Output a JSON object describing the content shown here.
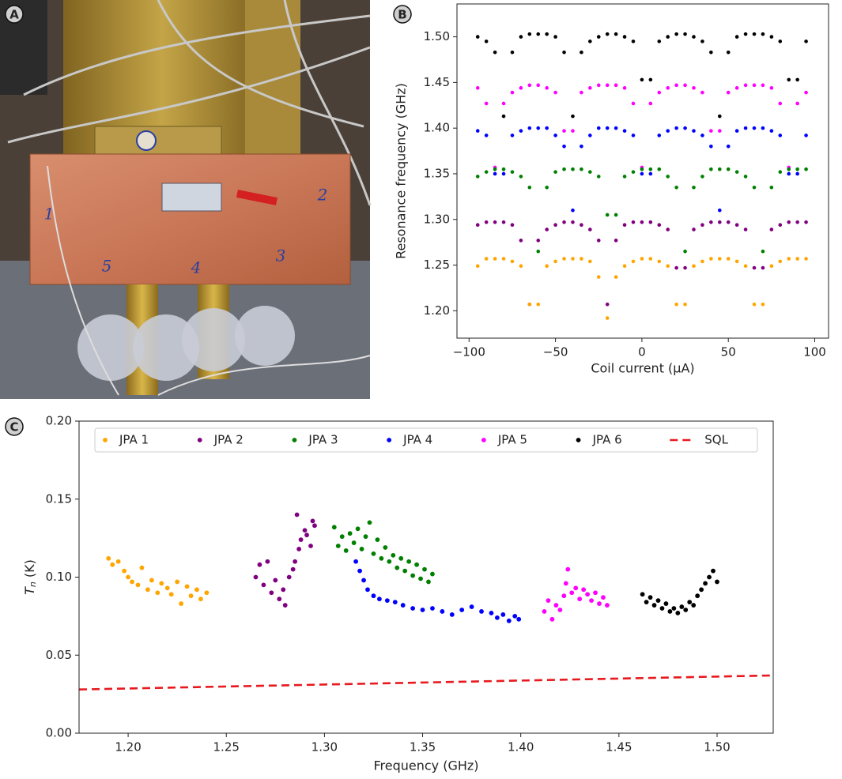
{
  "panel_labels": [
    "A",
    "B",
    "C"
  ],
  "photo_labels": [
    "1",
    "2",
    "3",
    "4",
    "5"
  ],
  "chart_data": [
    {
      "type": "scatter",
      "xlabel": "Coil current (μA)",
      "ylabel": "Resonance frequency (GHz)",
      "xlim": [
        -107,
        108
      ],
      "ylim": [
        1.17,
        1.536
      ],
      "xticks": [
        {
          "value": -100,
          "label": "−100"
        },
        {
          "value": -50,
          "label": "−50"
        },
        0,
        50,
        100
      ],
      "yticks": [
        {
          "value": 1.2,
          "label": "1.20"
        },
        {
          "value": 1.25,
          "label": "1.25"
        },
        {
          "value": 1.3,
          "label": "1.30"
        },
        {
          "value": 1.35,
          "label": "1.35"
        },
        {
          "value": 1.4,
          "label": "1.40"
        },
        {
          "value": 1.45,
          "label": "1.45"
        },
        {
          "value": 1.5,
          "label": "1.50"
        }
      ],
      "x": [
        -95,
        -90,
        -85,
        -80,
        -75,
        -70,
        -65,
        -60,
        -55,
        -50,
        -45,
        -40,
        -35,
        -30,
        -25,
        -20,
        -15,
        -10,
        -5,
        0,
        5,
        10,
        15,
        20,
        25,
        30,
        35,
        40,
        45,
        50,
        55,
        60,
        65,
        70,
        75,
        80,
        85,
        90,
        95
      ],
      "series": [
        {
          "color": "#000000",
          "values": [
            1.5,
            1.495,
            1.483,
            1.413,
            1.483,
            1.5,
            1.503,
            1.503,
            1.503,
            1.5,
            1.483,
            1.413,
            1.483,
            1.495,
            1.5,
            1.503,
            1.503,
            1.5,
            1.495,
            1.453,
            1.453,
            1.495,
            1.5,
            1.503,
            1.503,
            1.5,
            1.495,
            1.483,
            1.413,
            1.483,
            1.5,
            1.503,
            1.503,
            1.503,
            1.5,
            1.495,
            1.453,
            1.453,
            1.495
          ]
        },
        {
          "color": "#ff00ff",
          "values": [
            1.444,
            1.427,
            1.357,
            1.427,
            1.439,
            1.444,
            1.447,
            1.447,
            1.444,
            1.439,
            1.397,
            1.397,
            1.439,
            1.444,
            1.447,
            1.447,
            1.447,
            1.444,
            1.427,
            1.357,
            1.427,
            1.439,
            1.444,
            1.447,
            1.447,
            1.444,
            1.439,
            1.397,
            1.397,
            1.439,
            1.444,
            1.447,
            1.447,
            1.447,
            1.444,
            1.427,
            1.357,
            1.427,
            1.439
          ]
        },
        {
          "color": "#0000ff",
          "values": [
            1.397,
            1.392,
            1.35,
            1.35,
            1.392,
            1.397,
            1.4,
            1.4,
            1.4,
            1.392,
            1.38,
            1.31,
            1.38,
            1.392,
            1.4,
            1.4,
            1.4,
            1.397,
            1.392,
            1.35,
            1.35,
            1.392,
            1.397,
            1.4,
            1.4,
            1.397,
            1.392,
            1.38,
            1.31,
            1.38,
            1.397,
            1.4,
            1.4,
            1.4,
            1.397,
            1.392,
            1.35,
            1.35,
            1.392
          ]
        },
        {
          "color": "#008000",
          "values": [
            1.347,
            1.352,
            1.355,
            1.355,
            1.352,
            1.347,
            1.335,
            1.265,
            1.335,
            1.352,
            1.355,
            1.355,
            1.355,
            1.352,
            1.347,
            1.305,
            1.305,
            1.347,
            1.352,
            1.355,
            1.355,
            1.355,
            1.347,
            1.335,
            1.265,
            1.335,
            1.347,
            1.355,
            1.355,
            1.355,
            1.352,
            1.347,
            1.335,
            1.265,
            1.335,
            1.352,
            1.355,
            1.355,
            1.355
          ]
        },
        {
          "color": "#800080",
          "values": [
            1.294,
            1.297,
            1.297,
            1.297,
            1.294,
            1.277,
            1.207,
            1.277,
            1.289,
            1.294,
            1.297,
            1.297,
            1.294,
            1.289,
            1.277,
            1.207,
            1.277,
            1.294,
            1.297,
            1.297,
            1.297,
            1.294,
            1.289,
            1.247,
            1.247,
            1.289,
            1.294,
            1.297,
            1.297,
            1.297,
            1.294,
            1.289,
            1.247,
            1.247,
            1.289,
            1.294,
            1.297,
            1.297,
            1.297
          ]
        },
        {
          "color": "#ffa500",
          "values": [
            1.249,
            1.257,
            1.257,
            1.257,
            1.254,
            1.249,
            1.207,
            1.207,
            1.249,
            1.254,
            1.257,
            1.257,
            1.257,
            1.254,
            1.237,
            1.192,
            1.237,
            1.249,
            1.254,
            1.257,
            1.257,
            1.254,
            1.249,
            1.207,
            1.207,
            1.249,
            1.254,
            1.257,
            1.257,
            1.257,
            1.254,
            1.249,
            1.207,
            1.207,
            1.249,
            1.254,
            1.257,
            1.257,
            1.257
          ]
        }
      ]
    },
    {
      "type": "scatter",
      "xlabel": "Frequency (GHz)",
      "ylabel": {
        "symbol": "T",
        "subscript": "n",
        "unit": " (K)"
      },
      "xlim": [
        1.175,
        1.5286
      ],
      "ylim": [
        0,
        0.2
      ],
      "xticks": [
        {
          "value": 1.2,
          "label": "1.20"
        },
        {
          "value": 1.25,
          "label": "1.25"
        },
        {
          "value": 1.3,
          "label": "1.30"
        },
        {
          "value": 1.35,
          "label": "1.35"
        },
        {
          "value": 1.4,
          "label": "1.40"
        },
        {
          "value": 1.45,
          "label": "1.45"
        },
        {
          "value": 1.5,
          "label": "1.50"
        }
      ],
      "yticks": [
        {
          "value": 0,
          "label": "0.00"
        },
        {
          "value": 0.05,
          "label": "0.05"
        },
        {
          "value": 0.1,
          "label": "0.10"
        },
        {
          "value": 0.15,
          "label": "0.15"
        },
        {
          "value": 0.2,
          "label": "0.20"
        }
      ],
      "legend": "upper center",
      "series": [
        {
          "name": "JPA 1",
          "color": "#ffa500",
          "x": [
            1.19,
            1.192,
            1.195,
            1.198,
            1.2,
            1.202,
            1.205,
            1.207,
            1.21,
            1.212,
            1.215,
            1.217,
            1.22,
            1.222,
            1.225,
            1.227,
            1.23,
            1.232,
            1.235,
            1.237,
            1.24
          ],
          "values": [
            0.112,
            0.108,
            0.11,
            0.104,
            0.1,
            0.097,
            0.095,
            0.106,
            0.092,
            0.098,
            0.09,
            0.096,
            0.093,
            0.089,
            0.097,
            0.083,
            0.094,
            0.088,
            0.092,
            0.086,
            0.09
          ]
        },
        {
          "name": "JPA 2",
          "color": "#800080",
          "x": [
            1.265,
            1.267,
            1.269,
            1.271,
            1.273,
            1.275,
            1.277,
            1.279,
            1.28,
            1.282,
            1.284,
            1.285,
            1.287,
            1.288,
            1.29,
            1.291,
            1.293,
            1.294,
            1.295,
            1.286
          ],
          "values": [
            0.1,
            0.108,
            0.095,
            0.11,
            0.09,
            0.098,
            0.086,
            0.092,
            0.082,
            0.1,
            0.105,
            0.11,
            0.118,
            0.124,
            0.13,
            0.127,
            0.12,
            0.136,
            0.133,
            0.14
          ]
        },
        {
          "name": "JPA 3",
          "color": "#008000",
          "x": [
            1.305,
            1.307,
            1.309,
            1.311,
            1.313,
            1.315,
            1.317,
            1.319,
            1.321,
            1.323,
            1.325,
            1.327,
            1.329,
            1.331,
            1.333,
            1.335,
            1.337,
            1.339,
            1.341,
            1.343,
            1.345,
            1.347,
            1.349,
            1.351,
            1.353,
            1.355
          ],
          "values": [
            0.132,
            0.12,
            0.126,
            0.117,
            0.128,
            0.122,
            0.131,
            0.118,
            0.126,
            0.135,
            0.115,
            0.124,
            0.112,
            0.119,
            0.11,
            0.114,
            0.106,
            0.112,
            0.104,
            0.11,
            0.101,
            0.108,
            0.099,
            0.105,
            0.097,
            0.102
          ]
        },
        {
          "name": "JPA 4",
          "color": "#0000ff",
          "x": [
            1.316,
            1.318,
            1.32,
            1.322,
            1.325,
            1.328,
            1.332,
            1.336,
            1.34,
            1.345,
            1.35,
            1.355,
            1.36,
            1.365,
            1.37,
            1.375,
            1.38,
            1.385,
            1.388,
            1.391,
            1.394,
            1.397,
            1.399
          ],
          "values": [
            0.11,
            0.104,
            0.098,
            0.092,
            0.088,
            0.086,
            0.085,
            0.084,
            0.082,
            0.08,
            0.079,
            0.08,
            0.078,
            0.076,
            0.079,
            0.081,
            0.078,
            0.077,
            0.074,
            0.076,
            0.072,
            0.075,
            0.073
          ]
        },
        {
          "name": "JPA 5",
          "color": "#ff00ff",
          "x": [
            1.412,
            1.414,
            1.416,
            1.418,
            1.42,
            1.422,
            1.423,
            1.424,
            1.426,
            1.428,
            1.43,
            1.432,
            1.434,
            1.436,
            1.438,
            1.44,
            1.442,
            1.444
          ],
          "values": [
            0.078,
            0.085,
            0.073,
            0.082,
            0.079,
            0.088,
            0.096,
            0.105,
            0.09,
            0.093,
            0.086,
            0.092,
            0.089,
            0.085,
            0.09,
            0.083,
            0.087,
            0.082
          ]
        },
        {
          "name": "JPA 6",
          "color": "#000000",
          "x": [
            1.462,
            1.464,
            1.466,
            1.468,
            1.47,
            1.472,
            1.474,
            1.476,
            1.478,
            1.48,
            1.482,
            1.484,
            1.486,
            1.488,
            1.49,
            1.492,
            1.494,
            1.496,
            1.498,
            1.5
          ],
          "values": [
            0.089,
            0.084,
            0.087,
            0.082,
            0.085,
            0.08,
            0.083,
            0.078,
            0.08,
            0.077,
            0.081,
            0.079,
            0.084,
            0.082,
            0.088,
            0.092,
            0.096,
            0.1,
            0.104,
            0.097
          ]
        },
        {
          "name": "SQL",
          "color": "#e8191e",
          "type": "line",
          "dashed": true,
          "x": [
            1.175,
            1.5286
          ],
          "values": [
            0.028,
            0.037
          ]
        }
      ]
    }
  ]
}
